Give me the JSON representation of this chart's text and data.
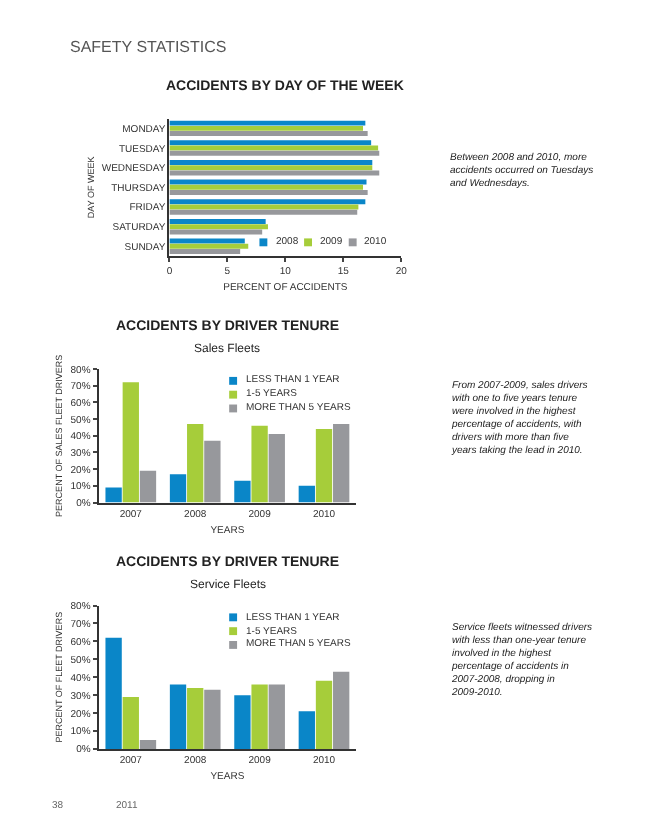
{
  "chart_data": [
    {
      "type": "bar",
      "orientation": "horizontal",
      "title": "ACCIDENTS BY DAY OF THE WEEK",
      "xlabel": "PERCENT OF ACCIDENTS",
      "ylabel": "DAY OF WEEK",
      "categories": [
        "MONDAY",
        "TUESDAY",
        "WEDNESDAY",
        "THURSDAY",
        "FRIDAY",
        "SATURDAY",
        "SUNDAY"
      ],
      "series": [
        {
          "name": "2008",
          "color": "#0a86c8",
          "values": [
            16.9,
            17.4,
            17.5,
            17.0,
            16.9,
            8.3,
            6.5
          ]
        },
        {
          "name": "2009",
          "color": "#a6cd3a",
          "values": [
            16.7,
            18.0,
            17.5,
            16.7,
            16.3,
            8.5,
            6.8
          ]
        },
        {
          "name": "2010",
          "color": "#97989c",
          "values": [
            17.1,
            18.1,
            18.1,
            17.1,
            16.2,
            8.0,
            6.1
          ]
        }
      ],
      "xlim": [
        0,
        20
      ],
      "xticks": [
        0,
        5,
        10,
        15,
        20
      ],
      "legend": "bottom right",
      "annotations": [
        "SAFETY STATISTICS",
        "Between 2008 and 2010, more accidents occurred on Tuesdays and Wednesdays."
      ]
    },
    {
      "type": "bar",
      "title": "ACCIDENTS BY DRIVER TENURE",
      "subtitle": "Sales Fleets",
      "xlabel": "YEARS",
      "ylabel": "PERCENT OF SALES FLEET DRIVERS",
      "categories": [
        "2007",
        "2008",
        "2009",
        "2010"
      ],
      "series": [
        {
          "name": "LESS THAN 1 YEAR",
          "color": "#0a86c8",
          "values": [
            9,
            17,
            13,
            10
          ]
        },
        {
          "name": "1-5 YEARS",
          "color": "#a6cd3a",
          "values": [
            72,
            47,
            46,
            44
          ]
        },
        {
          "name": "MORE THAN 5 YEARS",
          "color": "#97989c",
          "values": [
            19,
            37,
            41,
            47
          ]
        }
      ],
      "ylim": [
        0,
        80
      ],
      "yticks": [
        {
          "value": 0,
          "label": "0%"
        },
        {
          "value": 10,
          "label": "10%"
        },
        {
          "value": 20,
          "label": "20%"
        },
        {
          "value": 30,
          "label": "30%"
        },
        {
          "value": 40,
          "label": "40%"
        },
        {
          "value": 50,
          "label": "50%"
        },
        {
          "value": 60,
          "label": "60%"
        },
        {
          "value": 70,
          "label": "70%"
        },
        {
          "value": 80,
          "label": "80%"
        }
      ],
      "legend": "top right",
      "annotations": [
        "From 2007-2009, sales drivers with one to five years tenure were involved in the highest percentage of accidents, with drivers with more than five years taking the lead in 2010."
      ]
    },
    {
      "type": "bar",
      "title": "ACCIDENTS BY DRIVER TENURE",
      "subtitle": "Service Fleets",
      "xlabel": "YEARS",
      "ylabel": "PERCENT OF FLEET DRIVERS",
      "categories": [
        "2007",
        "2008",
        "2009",
        "2010"
      ],
      "series": [
        {
          "name": "LESS THAN 1 YEAR",
          "color": "#0a86c8",
          "values": [
            62,
            36,
            30,
            21
          ]
        },
        {
          "name": "1-5 YEARS",
          "color": "#a6cd3a",
          "values": [
            29,
            34,
            36,
            38
          ]
        },
        {
          "name": "MORE THAN 5 YEARS",
          "color": "#97989c",
          "values": [
            5,
            33,
            36,
            43
          ]
        }
      ],
      "ylim": [
        0,
        80
      ],
      "yticks": [
        {
          "value": 0,
          "label": "0%"
        },
        {
          "value": 10,
          "label": "10%"
        },
        {
          "value": 20,
          "label": "20%"
        },
        {
          "value": 30,
          "label": "30%"
        },
        {
          "value": 40,
          "label": "40%"
        },
        {
          "value": 50,
          "label": "50%"
        },
        {
          "value": 60,
          "label": "60%"
        },
        {
          "value": 70,
          "label": "70%"
        },
        {
          "value": 80,
          "label": "80%"
        }
      ],
      "legend": "top right",
      "annotations": [
        "Service fleets witnessed drivers with less than one-year tenure involved in the highest percentage of accidents in 2007-2008, dropping in 2009-2010.",
        "38",
        "2011"
      ]
    }
  ]
}
